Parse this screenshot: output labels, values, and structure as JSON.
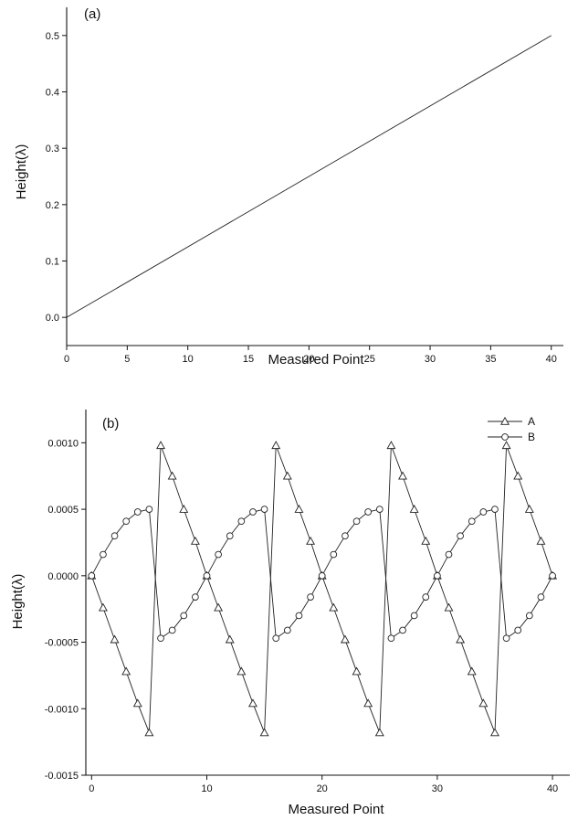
{
  "chart_data": [
    {
      "type": "line",
      "panel_label": "(a)",
      "xlabel": "Measured Point",
      "ylabel": "Height(λ)",
      "xlim": [
        0,
        41
      ],
      "ylim": [
        -0.05,
        0.55
      ],
      "xticks": [
        0,
        5,
        10,
        15,
        20,
        25,
        30,
        35,
        40
      ],
      "xtick_labels": [
        "0",
        "5",
        "10",
        "15",
        "20",
        "25",
        "30",
        "35",
        "40"
      ],
      "yticks": [
        0.0,
        0.1,
        0.2,
        0.3,
        0.4,
        0.5
      ],
      "ytick_labels": [
        "0.0",
        "0.1",
        "0.2",
        "0.3",
        "0.4",
        "0.5"
      ],
      "grid": false,
      "series": [
        {
          "x": [
            0,
            40
          ],
          "y": [
            0.0,
            0.5
          ]
        }
      ]
    },
    {
      "type": "line",
      "panel_label": "(b)",
      "xlabel": "Measured Point",
      "ylabel": "Height(λ)",
      "xlim": [
        -0.5,
        41.5
      ],
      "ylim": [
        -0.0015,
        0.00125
      ],
      "xticks": [
        0,
        10,
        20,
        30,
        40
      ],
      "xtick_labels": [
        "0",
        "10",
        "20",
        "30",
        "40"
      ],
      "yticks": [
        -0.0015,
        -0.001,
        -0.0005,
        0.0,
        0.0005,
        0.001
      ],
      "ytick_labels": [
        "-0.0015",
        "-0.0010",
        "-0.0005",
        "0.0000",
        "0.0005",
        "0.0010"
      ],
      "grid": false,
      "legend_position": "top-right",
      "x": [
        0,
        1,
        2,
        3,
        4,
        5,
        6,
        7,
        8,
        9,
        10,
        11,
        12,
        13,
        14,
        15,
        16,
        17,
        18,
        19,
        20,
        21,
        22,
        23,
        24,
        25,
        26,
        27,
        28,
        29,
        30,
        31,
        32,
        33,
        34,
        35,
        36,
        37,
        38,
        39,
        40
      ],
      "series": [
        {
          "name": "A",
          "marker": "triangle",
          "values": [
            0.0,
            -0.00024,
            -0.00048,
            -0.00072,
            -0.00096,
            -0.00118,
            0.00098,
            0.00075,
            0.0005,
            0.00026,
            0.0,
            -0.00024,
            -0.00048,
            -0.00072,
            -0.00096,
            -0.00118,
            0.00098,
            0.00075,
            0.0005,
            0.00026,
            0.0,
            -0.00024,
            -0.00048,
            -0.00072,
            -0.00096,
            -0.00118,
            0.00098,
            0.00075,
            0.0005,
            0.00026,
            0.0,
            -0.00024,
            -0.00048,
            -0.00072,
            -0.00096,
            -0.00118,
            0.00098,
            0.00075,
            0.0005,
            0.00026,
            0.0
          ]
        },
        {
          "name": "B",
          "marker": "circle",
          "values": [
            0.0,
            0.00016,
            0.0003,
            0.00041,
            0.00048,
            0.0005,
            -0.00047,
            -0.00041,
            -0.0003,
            -0.00016,
            0.0,
            0.00016,
            0.0003,
            0.00041,
            0.00048,
            0.0005,
            -0.00047,
            -0.00041,
            -0.0003,
            -0.00016,
            0.0,
            0.00016,
            0.0003,
            0.00041,
            0.00048,
            0.0005,
            -0.00047,
            -0.00041,
            -0.0003,
            -0.00016,
            0.0,
            0.00016,
            0.0003,
            0.00041,
            0.00048,
            0.0005,
            -0.00047,
            -0.00041,
            -0.0003,
            -0.00016,
            0.0
          ]
        }
      ]
    }
  ]
}
